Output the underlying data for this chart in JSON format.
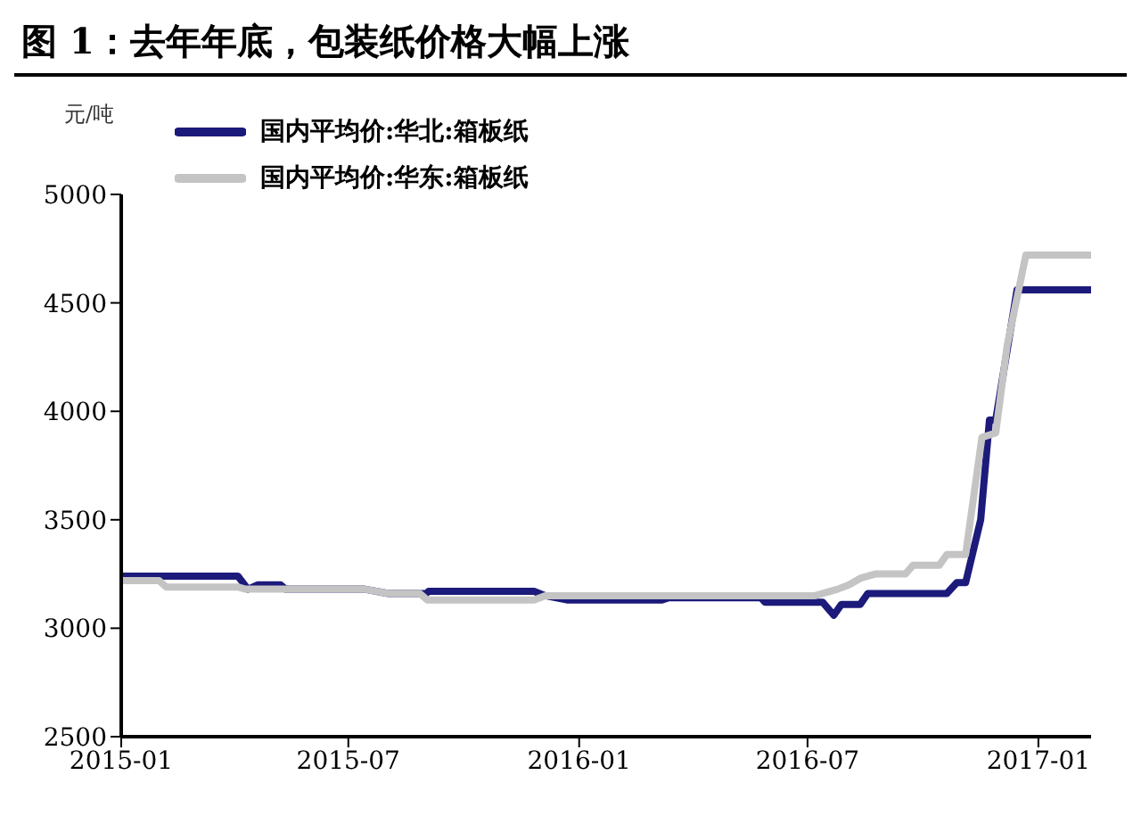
{
  "chart_data": {
    "type": "line",
    "title": "图 1：去年年底，包装纸价格大幅上涨",
    "ylabel": "元/吨",
    "xlim": [
      "2015-01-01",
      "2017-02-12"
    ],
    "xticks": [
      {
        "value": "2015-01-01",
        "label": "2015-01"
      },
      {
        "value": "2015-07-01",
        "label": "2015-07"
      },
      {
        "value": "2016-01-01",
        "label": "2016-01"
      },
      {
        "value": "2016-07-01",
        "label": "2016-07"
      },
      {
        "value": "2017-01-01",
        "label": "2017-01"
      }
    ],
    "ylim": [
      2500,
      5000
    ],
    "yticks": [
      2500,
      3000,
      3500,
      4000,
      4500,
      5000
    ],
    "legend": "top",
    "marker": "none",
    "line_style": "solid",
    "series": [
      {
        "name": "国内平均价:华北:箱板纸",
        "color": "#1c1a7a",
        "x": [
          "2015-01-01",
          "2015-04-04",
          "2015-04-12",
          "2015-04-20",
          "2015-05-08",
          "2015-05-12",
          "2015-07-14",
          "2015-08-02",
          "2015-09-01",
          "2015-09-03",
          "2015-11-26",
          "2015-12-05",
          "2015-12-23",
          "2016-03-07",
          "2016-03-12",
          "2016-05-25",
          "2016-05-28",
          "2016-07-13",
          "2016-07-22",
          "2016-07-28",
          "2016-08-12",
          "2016-08-18",
          "2016-10-20",
          "2016-10-28",
          "2016-11-04",
          "2016-11-16",
          "2016-11-23",
          "2016-11-28",
          "2016-12-15",
          "2017-02-12"
        ],
        "values": [
          3240,
          3240,
          3180,
          3200,
          3200,
          3180,
          3180,
          3160,
          3160,
          3170,
          3170,
          3150,
          3130,
          3130,
          3140,
          3140,
          3120,
          3120,
          3060,
          3110,
          3110,
          3160,
          3160,
          3210,
          3210,
          3500,
          3960,
          3960,
          4560,
          4560
        ]
      },
      {
        "name": "国内平均价:华东:箱板纸",
        "color": "#c4c4c4",
        "x": [
          "2015-01-01",
          "2015-01-31",
          "2015-02-06",
          "2015-04-04",
          "2015-04-10",
          "2015-07-14",
          "2015-08-02",
          "2015-08-27",
          "2015-09-02",
          "2015-11-26",
          "2015-12-05",
          "2016-07-07",
          "2016-07-25",
          "2016-08-03",
          "2016-08-12",
          "2016-08-24",
          "2016-09-17",
          "2016-09-23",
          "2016-10-14",
          "2016-10-20",
          "2016-11-04",
          "2016-11-17",
          "2016-11-28",
          "2016-12-07",
          "2016-12-22",
          "2017-02-12"
        ],
        "values": [
          3220,
          3220,
          3190,
          3190,
          3180,
          3180,
          3160,
          3160,
          3130,
          3130,
          3150,
          3150,
          3180,
          3200,
          3230,
          3250,
          3250,
          3290,
          3290,
          3340,
          3340,
          3880,
          3900,
          4300,
          4720,
          4720
        ]
      }
    ]
  }
}
